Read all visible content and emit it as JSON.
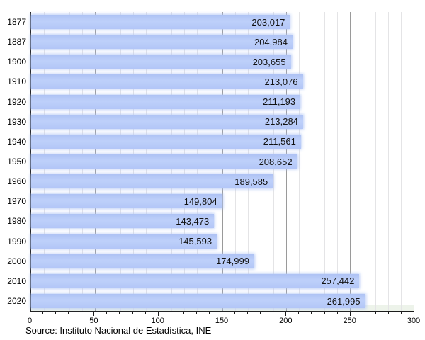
{
  "chart_data": {
    "type": "bar",
    "orientation": "horizontal",
    "title": "",
    "xlabel": "",
    "ylabel": "",
    "categories": [
      "1877",
      "1887",
      "1900",
      "1910",
      "1920",
      "1930",
      "1940",
      "1950",
      "1960",
      "1970",
      "1980",
      "1990",
      "2000",
      "2010",
      "2020"
    ],
    "values": [
      203017,
      204984,
      203655,
      213076,
      211193,
      213284,
      211561,
      208652,
      189585,
      149804,
      143473,
      145593,
      174999,
      257442,
      261995
    ],
    "value_labels": [
      "203,017",
      "204,984",
      "203,655",
      "213,076",
      "211,193",
      "213,284",
      "211,561",
      "208,652",
      "189,585",
      "149,804",
      "143,473",
      "145,593",
      "174,999",
      "257,442",
      "261,995"
    ],
    "x_axis": {
      "min": 0,
      "max": 300000,
      "minor_step": 10000,
      "major_step": 50000,
      "tick_labels": [
        "0",
        "50",
        "100",
        "150",
        "200",
        "250",
        "300"
      ]
    },
    "grid": "vertical",
    "legend": "none",
    "bar_color": "#b3c6f7",
    "minor_grid_color": "#e4e4e6",
    "major_grid_color": "#9a9a9a",
    "axis_color": "#1c1c1c"
  },
  "source_note": "Source: Instituto Nacional de Estadística, INE"
}
